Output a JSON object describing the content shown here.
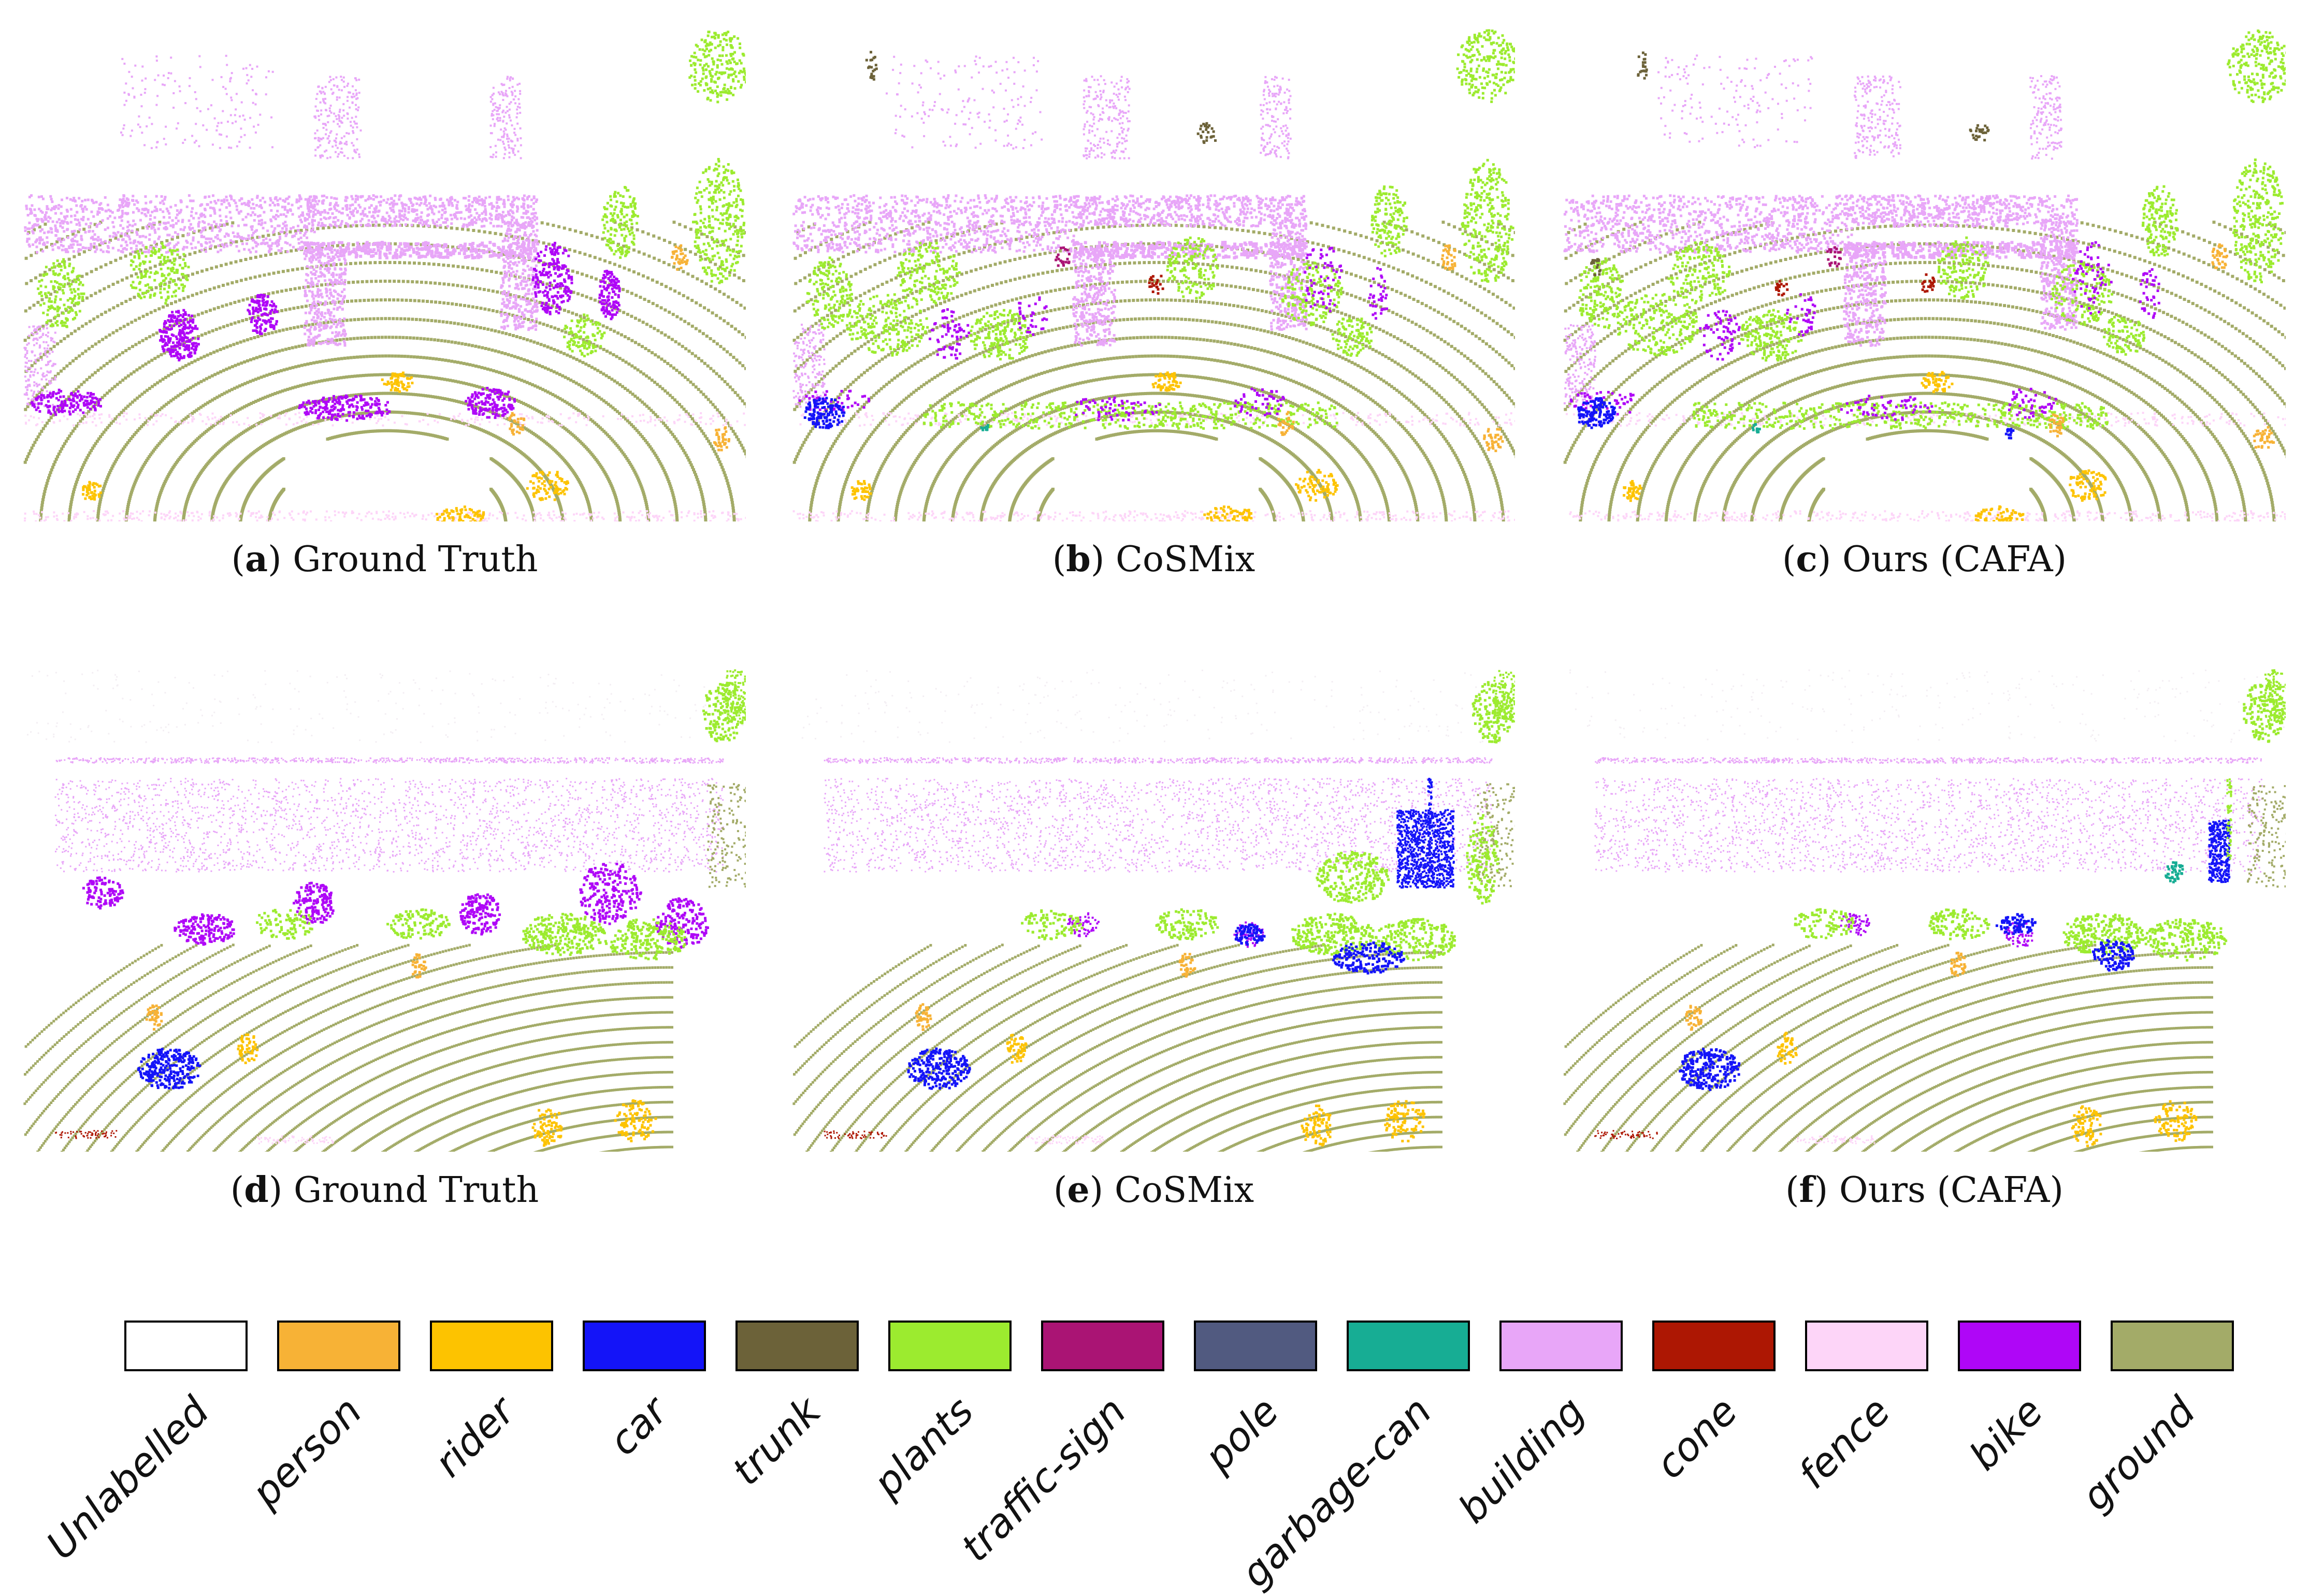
{
  "panels": [
    {
      "letter": "a",
      "label": "Ground Truth",
      "variant": "gt1"
    },
    {
      "letter": "b",
      "label": "CoSMix",
      "variant": "cos1"
    },
    {
      "letter": "c",
      "label": "Ours (CAFA)",
      "variant": "ours1"
    },
    {
      "letter": "d",
      "label": "Ground Truth",
      "variant": "gt2"
    },
    {
      "letter": "e",
      "label": "CoSMix",
      "variant": "cos2"
    },
    {
      "letter": "f",
      "label": "Ours (CAFA)",
      "variant": "ours2"
    }
  ],
  "legend": [
    {
      "label": "Unlabelled",
      "color": "#ffffff"
    },
    {
      "label": "person",
      "color": "#f7b236"
    },
    {
      "label": "rider",
      "color": "#fdc300"
    },
    {
      "label": "car",
      "color": "#1414f8"
    },
    {
      "label": "trunk",
      "color": "#6c6239"
    },
    {
      "label": "plants",
      "color": "#9ceb2f"
    },
    {
      "label": "traffic-sign",
      "color": "#aa1474"
    },
    {
      "label": "pole",
      "color": "#515a80"
    },
    {
      "label": "garbage-can",
      "color": "#17ad94"
    },
    {
      "label": "building",
      "color": "#e8a6f8"
    },
    {
      "label": "cone",
      "color": "#ad1703"
    },
    {
      "label": "fence",
      "color": "#fdd5f8"
    },
    {
      "label": "bike",
      "color": "#af06f7"
    },
    {
      "label": "ground",
      "color": "#a3ab68"
    }
  ]
}
